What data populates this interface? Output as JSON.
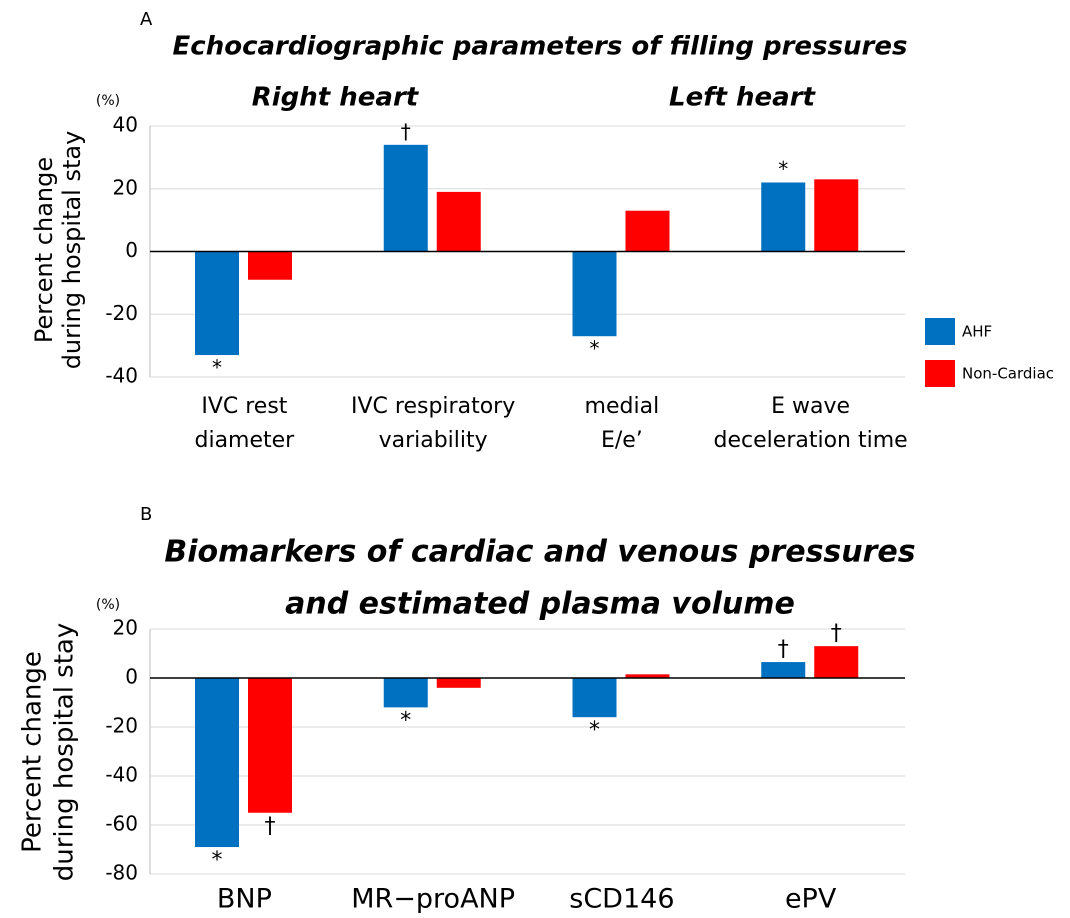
{
  "chart_data": [
    {
      "type": "bar",
      "panel": "A",
      "title": [
        "Echocardiographic parameters of filling pressures"
      ],
      "group_labels": [
        "Right heart",
        "Left heart"
      ],
      "y_unit": "(%)",
      "ylabel": [
        "Percent change",
        "during hospital stay"
      ],
      "categories": [
        [
          "IVC rest",
          "diameter"
        ],
        [
          "IVC respiratory",
          "variability"
        ],
        [
          "medial",
          "E/e’"
        ],
        [
          "E wave",
          "deceleration time"
        ]
      ],
      "series": [
        {
          "name": "AHF",
          "color": "#0070c0",
          "values": [
            -33,
            34,
            -27,
            22
          ],
          "markers": [
            "*",
            "†",
            "*",
            "*"
          ]
        },
        {
          "name": "Non-Cardiac",
          "color": "#ff0000",
          "values": [
            -9,
            19,
            13,
            23
          ],
          "markers": [
            null,
            null,
            null,
            null
          ]
        }
      ],
      "ylim": [
        -40,
        40
      ],
      "yticks": [
        -40,
        -20,
        0,
        20,
        40
      ],
      "grid": true,
      "legend": "right"
    },
    {
      "type": "bar",
      "panel": "B",
      "title": [
        "Biomarkers of cardiac and venous pressures",
        "and estimated plasma volume"
      ],
      "y_unit": "(%)",
      "ylabel": [
        "Percent change",
        "during hospital stay"
      ],
      "categories": [
        [
          "BNP"
        ],
        [
          "MR−proANP"
        ],
        [
          "sCD146"
        ],
        [
          "ePV"
        ]
      ],
      "series": [
        {
          "name": "AHF",
          "color": "#0070c0",
          "values": [
            -69,
            -12,
            -16,
            6.5
          ],
          "markers": [
            "*",
            "*",
            "*",
            "†"
          ]
        },
        {
          "name": "Non-Cardiac",
          "color": "#ff0000",
          "values": [
            -55,
            -4,
            1.5,
            13
          ],
          "markers": [
            "†",
            null,
            null,
            "†"
          ]
        }
      ],
      "ylim": [
        -80,
        20
      ],
      "yticks": [
        -80,
        -60,
        -40,
        -20,
        0,
        20
      ],
      "grid": true
    }
  ]
}
